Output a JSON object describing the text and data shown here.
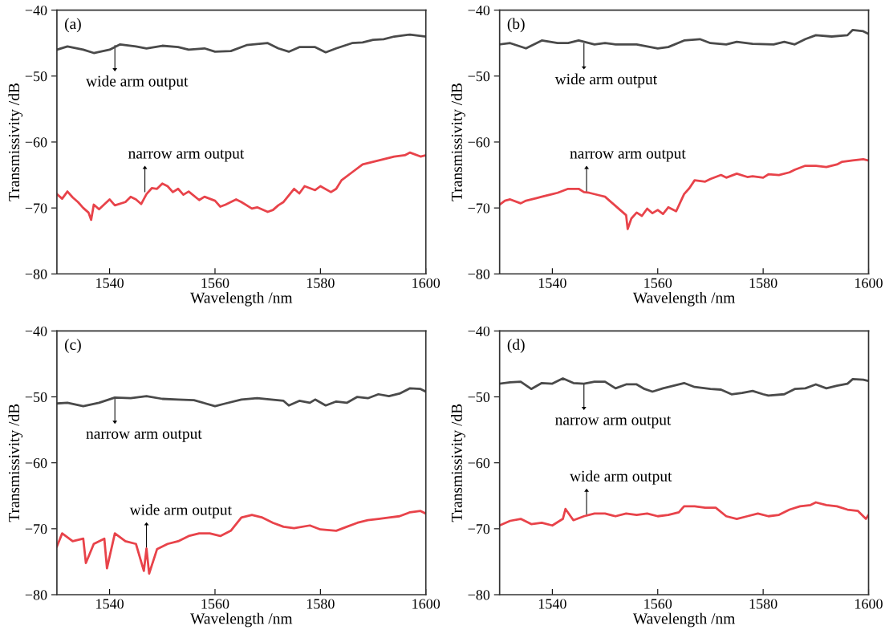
{
  "chart_data": [
    {
      "type": "line",
      "xlabel": "Wavelength /nm",
      "ylabel": "Transmissivity /dB",
      "xlim": [
        1530,
        1600
      ],
      "ylim": [
        -80,
        -40
      ],
      "xticks": [
        1540,
        1560,
        1580,
        1600
      ],
      "yticks": [
        -80,
        -70,
        -60,
        -50,
        -40
      ],
      "grid": false,
      "annotations": [
        "(a)",
        {
          "text": "wide arm output",
          "x": 1541,
          "y": -45.3
        },
        {
          "text": "narrow arm output",
          "x": 1546.7,
          "y": -67.6
        }
      ],
      "series": [
        {
          "color": "#4a4a4a",
          "x": [
            1530,
            1532,
            1535,
            1537,
            1540,
            1542,
            1545,
            1547,
            1550,
            1553,
            1555,
            1558,
            1560,
            1563,
            1566,
            1570,
            1572,
            1574,
            1576,
            1579,
            1581,
            1583,
            1586,
            1588,
            1590,
            1592,
            1594,
            1597,
            1600
          ],
          "values": [
            -46.0,
            -45.5,
            -46.0,
            -46.5,
            -46.0,
            -45.2,
            -45.5,
            -45.8,
            -45.4,
            -45.6,
            -46.0,
            -45.8,
            -46.3,
            -46.2,
            -45.3,
            -45.0,
            -45.8,
            -46.3,
            -45.6,
            -45.6,
            -46.4,
            -45.8,
            -45.0,
            -44.9,
            -44.5,
            -44.4,
            -44.0,
            -43.7,
            -44.0
          ]
        },
        {
          "color": "#e8434a",
          "x": [
            1530,
            1531,
            1532,
            1533,
            1534,
            1535,
            1536,
            1536.5,
            1537,
            1538,
            1540,
            1541,
            1543,
            1544,
            1545,
            1546,
            1547,
            1548,
            1549,
            1550,
            1551,
            1552,
            1553,
            1554,
            1555,
            1557,
            1558,
            1560,
            1561,
            1562,
            1564,
            1565,
            1567,
            1568,
            1570,
            1571,
            1572,
            1573,
            1575,
            1576,
            1577,
            1579,
            1580,
            1582,
            1583,
            1584,
            1586,
            1588,
            1590,
            1592,
            1594,
            1596,
            1597,
            1599,
            1600
          ],
          "values": [
            -67.9,
            -68.6,
            -67.5,
            -68.4,
            -69.1,
            -70.0,
            -70.7,
            -71.8,
            -69.5,
            -70.2,
            -68.7,
            -69.6,
            -69.1,
            -68.3,
            -68.7,
            -69.4,
            -67.9,
            -67.0,
            -67.1,
            -66.3,
            -66.7,
            -67.6,
            -67.1,
            -68.0,
            -67.5,
            -68.8,
            -68.3,
            -68.9,
            -69.8,
            -69.5,
            -68.7,
            -69.1,
            -70.1,
            -69.9,
            -70.6,
            -70.3,
            -69.6,
            -69.1,
            -67.1,
            -67.8,
            -66.7,
            -67.3,
            -66.7,
            -67.6,
            -67.1,
            -65.8,
            -64.6,
            -63.4,
            -63.0,
            -62.6,
            -62.2,
            -62.0,
            -61.6,
            -62.2,
            -62.0
          ]
        }
      ]
    },
    {
      "type": "line",
      "xlabel": "Wavelength /nm",
      "ylabel": "Transmissivity /dB",
      "xlim": [
        1530,
        1600
      ],
      "ylim": [
        -80,
        -40
      ],
      "xticks": [
        1540,
        1560,
        1580,
        1600
      ],
      "yticks": [
        -80,
        -70,
        -60,
        -50,
        -40
      ],
      "grid": false,
      "annotations": [
        "(b)",
        {
          "text": "wide arm output",
          "x": 1546,
          "y": -45.0
        },
        {
          "text": "narrow arm output",
          "x": 1546.5,
          "y": -67.6
        }
      ],
      "series": [
        {
          "color": "#4a4a4a",
          "x": [
            1530,
            1532,
            1535,
            1538,
            1541,
            1543,
            1545,
            1548,
            1550,
            1552,
            1556,
            1560,
            1562,
            1565,
            1568,
            1570,
            1573,
            1575,
            1578,
            1582,
            1584,
            1586,
            1588,
            1590,
            1593,
            1596,
            1597,
            1599,
            1600
          ],
          "values": [
            -45.2,
            -45.0,
            -45.8,
            -44.6,
            -45.0,
            -45.0,
            -44.6,
            -45.2,
            -45.0,
            -45.2,
            -45.2,
            -45.8,
            -45.6,
            -44.6,
            -44.4,
            -45.0,
            -45.2,
            -44.8,
            -45.1,
            -45.2,
            -44.8,
            -45.2,
            -44.4,
            -43.8,
            -44.0,
            -43.8,
            -43.0,
            -43.2,
            -43.6
          ]
        },
        {
          "color": "#e8434a",
          "x": [
            1530,
            1531,
            1532,
            1534,
            1535,
            1537,
            1538,
            1540,
            1541,
            1543,
            1545,
            1546,
            1547,
            1549,
            1550,
            1552,
            1553,
            1554,
            1554.3,
            1555,
            1556,
            1557,
            1558,
            1559,
            1560,
            1561,
            1562,
            1563.5,
            1565,
            1566,
            1567,
            1569,
            1570,
            1572,
            1573,
            1575,
            1577,
            1578,
            1580,
            1581,
            1583,
            1585,
            1586,
            1588,
            1590,
            1592,
            1594,
            1595,
            1597,
            1599,
            1600
          ],
          "values": [
            -69.5,
            -68.9,
            -68.7,
            -69.3,
            -68.9,
            -68.5,
            -68.3,
            -67.9,
            -67.7,
            -67.1,
            -67.1,
            -67.6,
            -67.7,
            -68.1,
            -68.3,
            -69.7,
            -70.4,
            -71.1,
            -73.2,
            -71.6,
            -70.7,
            -71.2,
            -70.1,
            -70.8,
            -70.3,
            -70.9,
            -69.9,
            -70.5,
            -67.9,
            -67.0,
            -65.8,
            -66.0,
            -65.6,
            -65.0,
            -65.4,
            -64.8,
            -65.3,
            -65.2,
            -65.4,
            -64.9,
            -65.0,
            -64.6,
            -64.2,
            -63.6,
            -63.6,
            -63.8,
            -63.4,
            -63.0,
            -62.8,
            -62.6,
            -62.8
          ]
        }
      ]
    },
    {
      "type": "line",
      "xlabel": "Wavelength /nm",
      "ylabel": "Transmissivity /dB",
      "xlim": [
        1530,
        1600
      ],
      "ylim": [
        -80,
        -40
      ],
      "xticks": [
        1540,
        1560,
        1580,
        1600
      ],
      "yticks": [
        -80,
        -70,
        -60,
        -50,
        -40
      ],
      "grid": false,
      "annotations": [
        "(c)",
        {
          "text": "narrow arm output",
          "x": 1541,
          "y": -50.1
        },
        {
          "text": "wide arm output",
          "x": 1547,
          "y": -73.0
        }
      ],
      "series": [
        {
          "color": "#4a4a4a",
          "x": [
            1530,
            1532,
            1535,
            1538,
            1541,
            1544,
            1547,
            1550,
            1553,
            1556,
            1560,
            1562,
            1565,
            1568,
            1573,
            1574,
            1576,
            1578,
            1579,
            1581,
            1583,
            1585,
            1587,
            1589,
            1591,
            1593,
            1595,
            1597,
            1599,
            1600
          ],
          "values": [
            -51.0,
            -50.9,
            -51.4,
            -50.9,
            -50.1,
            -50.2,
            -49.9,
            -50.3,
            -50.4,
            -50.5,
            -51.4,
            -51.0,
            -50.4,
            -50.2,
            -50.6,
            -51.3,
            -50.6,
            -50.9,
            -50.4,
            -51.3,
            -50.7,
            -50.9,
            -50.0,
            -50.2,
            -49.6,
            -49.9,
            -49.5,
            -48.7,
            -48.8,
            -49.2
          ]
        },
        {
          "color": "#e8434a",
          "x": [
            1530,
            1531,
            1533,
            1535,
            1535.5,
            1537,
            1539,
            1539.5,
            1541,
            1543,
            1545,
            1546.5,
            1547,
            1547.5,
            1549,
            1551,
            1553,
            1555,
            1557,
            1559,
            1561,
            1563,
            1565,
            1567,
            1569,
            1571,
            1573,
            1575,
            1578,
            1580,
            1583,
            1585,
            1587,
            1589,
            1591,
            1593,
            1595,
            1597,
            1599,
            1600
          ],
          "values": [
            -72.7,
            -70.7,
            -71.9,
            -71.5,
            -75.2,
            -72.3,
            -71.5,
            -76.0,
            -70.7,
            -71.9,
            -72.3,
            -76.4,
            -73.0,
            -76.8,
            -73.1,
            -72.3,
            -71.9,
            -71.1,
            -70.7,
            -70.7,
            -71.1,
            -70.3,
            -68.3,
            -67.9,
            -68.3,
            -69.1,
            -69.7,
            -69.9,
            -69.5,
            -70.1,
            -70.3,
            -69.7,
            -69.1,
            -68.7,
            -68.5,
            -68.3,
            -68.1,
            -67.5,
            -67.3,
            -67.7
          ]
        }
      ]
    },
    {
      "type": "line",
      "xlabel": "Wavelength /nm",
      "ylabel": "Transmissivity /dB",
      "xlim": [
        1530,
        1600
      ],
      "ylim": [
        -80,
        -40
      ],
      "xticks": [
        1540,
        1560,
        1580,
        1600
      ],
      "yticks": [
        -80,
        -70,
        -60,
        -50,
        -40
      ],
      "grid": false,
      "annotations": [
        "(d)",
        {
          "text": "narrow arm output",
          "x": 1546,
          "y": -48.0
        },
        {
          "text": "wide arm output",
          "x": 1546.5,
          "y": -67.9
        }
      ],
      "series": [
        {
          "color": "#4a4a4a",
          "x": [
            1530,
            1532,
            1534,
            1536,
            1538,
            1540,
            1542,
            1544,
            1546,
            1548,
            1550,
            1552,
            1554,
            1556,
            1557.5,
            1559,
            1561,
            1565,
            1567,
            1570,
            1572,
            1574,
            1576,
            1578,
            1580,
            1581,
            1584,
            1586,
            1588,
            1590,
            1592,
            1594,
            1596,
            1597,
            1599,
            1600
          ],
          "values": [
            -48.0,
            -47.8,
            -47.7,
            -48.8,
            -47.9,
            -48.0,
            -47.2,
            -47.9,
            -48.0,
            -47.7,
            -47.7,
            -48.7,
            -48.1,
            -48.1,
            -48.8,
            -49.2,
            -48.7,
            -47.9,
            -48.5,
            -48.8,
            -48.9,
            -49.6,
            -49.4,
            -49.1,
            -49.6,
            -49.8,
            -49.6,
            -48.8,
            -48.7,
            -48.1,
            -48.7,
            -48.3,
            -48.0,
            -47.3,
            -47.4,
            -47.6
          ]
        },
        {
          "color": "#e8434a",
          "x": [
            1530,
            1532,
            1534,
            1536,
            1538,
            1540,
            1542,
            1542.5,
            1544,
            1546,
            1548,
            1550,
            1552,
            1554,
            1556,
            1558,
            1560,
            1562,
            1564,
            1565,
            1567,
            1569,
            1571,
            1573,
            1575,
            1577,
            1579,
            1581,
            1583,
            1585,
            1587,
            1589,
            1590,
            1592,
            1594,
            1596,
            1598,
            1599.5,
            1600
          ],
          "values": [
            -69.5,
            -68.8,
            -68.5,
            -69.3,
            -69.1,
            -69.5,
            -68.5,
            -67.0,
            -68.7,
            -68.1,
            -67.7,
            -67.7,
            -68.1,
            -67.7,
            -67.9,
            -67.7,
            -68.1,
            -67.9,
            -67.5,
            -66.6,
            -66.6,
            -66.8,
            -66.8,
            -68.1,
            -68.5,
            -68.1,
            -67.7,
            -68.1,
            -67.9,
            -67.1,
            -66.6,
            -66.4,
            -66.0,
            -66.4,
            -66.6,
            -67.1,
            -67.3,
            -68.5,
            -67.9
          ]
        }
      ]
    }
  ]
}
